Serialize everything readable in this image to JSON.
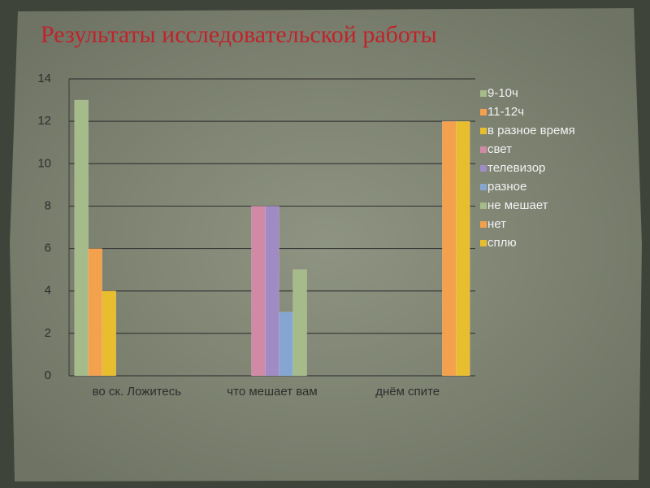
{
  "chart_data": {
    "type": "bar",
    "title": "Результаты исследовательской работы",
    "categories": [
      "во ск. Ложитесь",
      "что мешает вам",
      "днём спите"
    ],
    "series": [
      {
        "name": "9-10ч",
        "color": "#a5bb8a",
        "values": [
          13,
          null,
          null
        ]
      },
      {
        "name": "11-12ч",
        "color": "#f3a14d",
        "values": [
          6,
          null,
          null
        ]
      },
      {
        "name": "в разное время",
        "color": "#e9be2e",
        "values": [
          4,
          null,
          null
        ]
      },
      {
        "name": "свет",
        "color": "#d18aa5",
        "values": [
          null,
          8,
          null
        ]
      },
      {
        "name": "телевизор",
        "color": "#a08bc4",
        "values": [
          null,
          8,
          null
        ]
      },
      {
        "name": "разное",
        "color": "#86a6d2",
        "values": [
          null,
          3,
          null
        ]
      },
      {
        "name": "не мешает",
        "color": "#a5bb8a",
        "values": [
          null,
          5,
          null
        ]
      },
      {
        "name": "нет",
        "color": "#f3a14d",
        "values": [
          null,
          null,
          12
        ]
      },
      {
        "name": "сплю",
        "color": "#e9be2e",
        "values": [
          null,
          null,
          12
        ]
      }
    ],
    "ylim": [
      0,
      14
    ],
    "yticks": [
      0,
      2,
      4,
      6,
      8,
      10,
      12,
      14
    ],
    "grid": true,
    "legend": "right"
  }
}
